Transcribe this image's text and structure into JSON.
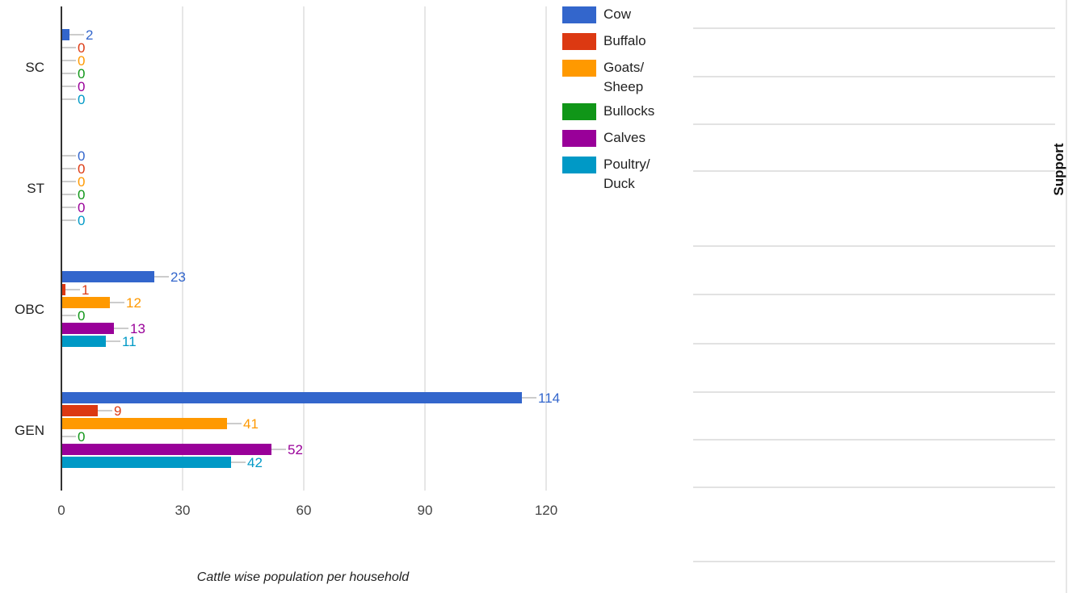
{
  "chart_data": {
    "type": "bar",
    "orientation": "horizontal",
    "categories": [
      "SC",
      "ST",
      "OBC",
      "GEN"
    ],
    "series": [
      {
        "name": "Cow",
        "color": "#3366cc",
        "values": [
          2,
          0,
          23,
          114
        ]
      },
      {
        "name": "Buffalo",
        "color": "#dc3912",
        "values": [
          0,
          0,
          1,
          9
        ]
      },
      {
        "name": "Goats/ Sheep",
        "color": "#ff9900",
        "values": [
          0,
          0,
          12,
          41
        ]
      },
      {
        "name": "Bullocks",
        "color": "#109618",
        "values": [
          0,
          0,
          0,
          0
        ]
      },
      {
        "name": "Calves",
        "color": "#990099",
        "values": [
          0,
          0,
          13,
          52
        ]
      },
      {
        "name": "Poultry/ Duck",
        "color": "#0099c6",
        "values": [
          0,
          0,
          11,
          42
        ]
      }
    ],
    "xlabel": "Cattle wise population per household",
    "ylabel": "",
    "xlim": [
      0,
      120
    ],
    "xticks": [
      "0",
      "30",
      "60",
      "90",
      "120"
    ],
    "grid": true,
    "legend": "right"
  },
  "side_panel": {
    "title": "Support"
  }
}
